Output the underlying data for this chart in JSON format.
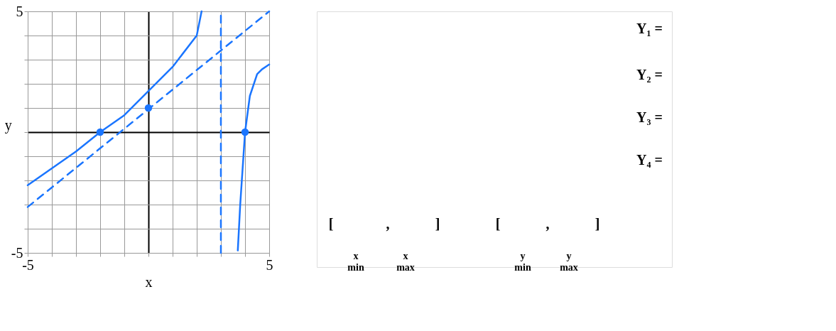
{
  "chart_data": [
    {
      "type": "line",
      "xlabel": "x",
      "ylabel": "y",
      "xlim": [
        -5,
        5
      ],
      "ylim": [
        -5,
        5
      ],
      "xticks": [
        -5,
        {
          "value": -4,
          "label": null
        },
        {
          "value": -3,
          "label": null
        },
        {
          "value": -2,
          "label": null
        },
        {
          "value": -1,
          "label": null
        },
        {
          "value": 0,
          "label": null
        },
        {
          "value": 1,
          "label": null
        },
        {
          "value": 2,
          "label": null
        },
        {
          "value": 3,
          "label": null
        },
        {
          "value": 4,
          "label": null
        },
        5
      ],
      "yticks": [
        -5,
        {
          "value": -4,
          "label": null
        },
        {
          "value": -3,
          "label": null
        },
        {
          "value": -2,
          "label": null
        },
        {
          "value": -1,
          "label": null
        },
        {
          "value": 0,
          "label": null
        },
        {
          "value": 1,
          "label": null
        },
        {
          "value": 2,
          "label": null
        },
        {
          "value": 3,
          "label": null
        },
        {
          "value": 4,
          "label": null
        },
        5
      ],
      "grid": true,
      "series": [
        {
          "type": "line",
          "color": "#1a75ff",
          "line_style": "solid",
          "x": [
            -5,
            -4,
            -3,
            -2,
            -1,
            0,
            1,
            2,
            2.2
          ],
          "values": [
            -2.2,
            -1.5,
            -0.8,
            0,
            0.7,
            1.7,
            2.7,
            4.0,
            5
          ]
        },
        {
          "type": "line",
          "color": "#1a75ff",
          "line_style": "solid",
          "x": [
            3.7,
            3.8,
            3.9,
            4,
            4.2,
            4.5,
            4.7,
            5
          ],
          "values": [
            -4.9,
            -3,
            -1.5,
            0,
            1.5,
            2.4,
            2.6,
            2.8
          ]
        },
        {
          "type": "line",
          "color": "#1a75ff",
          "line_style": "dashed",
          "x": [
            -5,
            5
          ],
          "values": [
            -3.1,
            5
          ]
        },
        {
          "type": "line",
          "color": "#1a75ff",
          "line_style": "dashed",
          "x": [
            3,
            3
          ],
          "values": [
            -5,
            5
          ]
        },
        {
          "type": "scatter",
          "color": "#1a75ff",
          "marker": "circle",
          "x": [
            -2,
            0,
            4
          ],
          "values": [
            0,
            1,
            0
          ]
        }
      ]
    },
    {
      "type": "other",
      "annotations": [
        "Y₁ =",
        "Y₂ =",
        "Y₃ =",
        "Y₄ =",
        "[",
        ",",
        "]",
        "x min",
        "x max",
        "[",
        ",",
        "]",
        "y min",
        "y max"
      ]
    }
  ]
}
